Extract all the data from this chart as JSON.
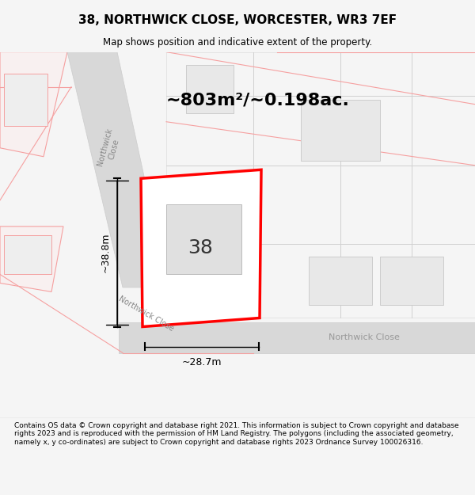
{
  "title_line1": "38, NORTHWICK CLOSE, WORCESTER, WR3 7EF",
  "title_line2": "Map shows position and indicative extent of the property.",
  "area_text": "~803m²/~0.198ac.",
  "label_38": "38",
  "dim_width": "~28.7m",
  "dim_height": "~38.8m",
  "road_label_1": "Northwick Close",
  "road_label_2": "Northwick Close",
  "road_label_3": "Northwick Close",
  "footer_text": "Contains OS data © Crown copyright and database right 2021. This information is subject to Crown copyright and database rights 2023 and is reproduced with the permission of HM Land Registry. The polygons (including the associated geometry, namely x, y co-ordinates) are subject to Crown copyright and database rights 2023 Ordnance Survey 100026316.",
  "bg_color": "#f5f5f5",
  "map_bg": "#ffffff",
  "road_color": "#d3d3d3",
  "road_stroke": "#cccccc",
  "plot_fill": "#ffffff",
  "plot_stroke": "#ff0000",
  "building_fill": "#e0e0e0",
  "dim_line_color": "#000000",
  "text_color": "#000000",
  "footer_bg": "#ffffff",
  "light_road_lines": "#f5a0a0"
}
